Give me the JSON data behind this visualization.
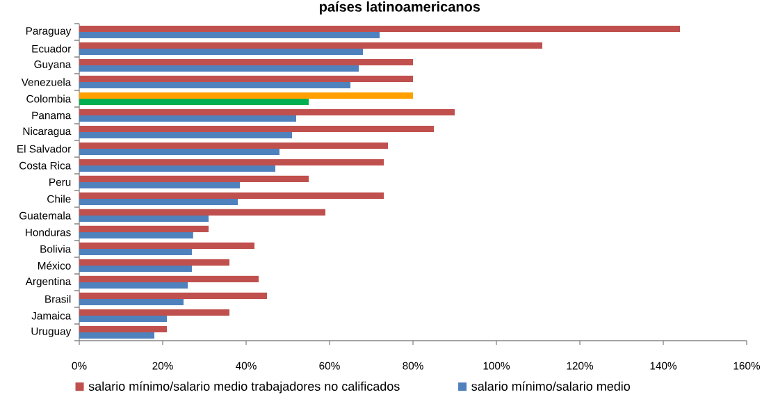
{
  "chart_data": {
    "type": "bar",
    "orientation": "horizontal",
    "title": "países latinoamericanos",
    "categories": [
      "Paraguay",
      "Ecuador",
      "Guyana",
      "Venezuela",
      "Colombia",
      "Panama",
      "Nicaragua",
      "El Salvador",
      "Costa Rica",
      "Peru",
      "Chile",
      "Guatemala",
      "Honduras",
      "Bolivia",
      "México",
      "Argentina",
      "Brasil",
      "Jamaica",
      "Uruguay"
    ],
    "series": [
      {
        "name": "salario mínimo/salario medio trabajadores no calificados",
        "color": "#c0504d",
        "colors": [
          "#c0504d",
          "#c0504d",
          "#c0504d",
          "#c0504d",
          "#ffa000",
          "#c0504d",
          "#c0504d",
          "#c0504d",
          "#c0504d",
          "#c0504d",
          "#c0504d",
          "#c0504d",
          "#c0504d",
          "#c0504d",
          "#c0504d",
          "#c0504d",
          "#c0504d",
          "#c0504d",
          "#c0504d"
        ],
        "values": [
          144,
          111,
          80,
          80,
          80,
          90,
          85,
          74,
          73,
          55,
          73,
          59,
          31,
          42,
          36,
          43,
          45,
          36,
          21
        ]
      },
      {
        "name": "salario mínimo/salario medio",
        "color": "#4f81bd",
        "colors": [
          "#4f81bd",
          "#4f81bd",
          "#4f81bd",
          "#4f81bd",
          "#00b050",
          "#4f81bd",
          "#4f81bd",
          "#4f81bd",
          "#4f81bd",
          "#4f81bd",
          "#4f81bd",
          "#4f81bd",
          "#4f81bd",
          "#4f81bd",
          "#4f81bd",
          "#4f81bd",
          "#4f81bd",
          "#4f81bd",
          "#4f81bd"
        ],
        "values": [
          72,
          68,
          67,
          65,
          55,
          52,
          51,
          48,
          47,
          38.5,
          38,
          31,
          27.3,
          27,
          27,
          26,
          25,
          21,
          18
        ]
      }
    ],
    "xlim": [
      0,
      160
    ],
    "xticks": [
      {
        "value": 0,
        "label": "0%"
      },
      {
        "value": 20,
        "label": "20%"
      },
      {
        "value": 40,
        "label": "40%"
      },
      {
        "value": 60,
        "label": "60%"
      },
      {
        "value": 80,
        "label": "80%"
      },
      {
        "value": 100,
        "label": "100%"
      },
      {
        "value": 120,
        "label": "120%"
      },
      {
        "value": 140,
        "label": "140%"
      },
      {
        "value": 160,
        "label": "160%"
      }
    ],
    "legend": "bottom"
  }
}
